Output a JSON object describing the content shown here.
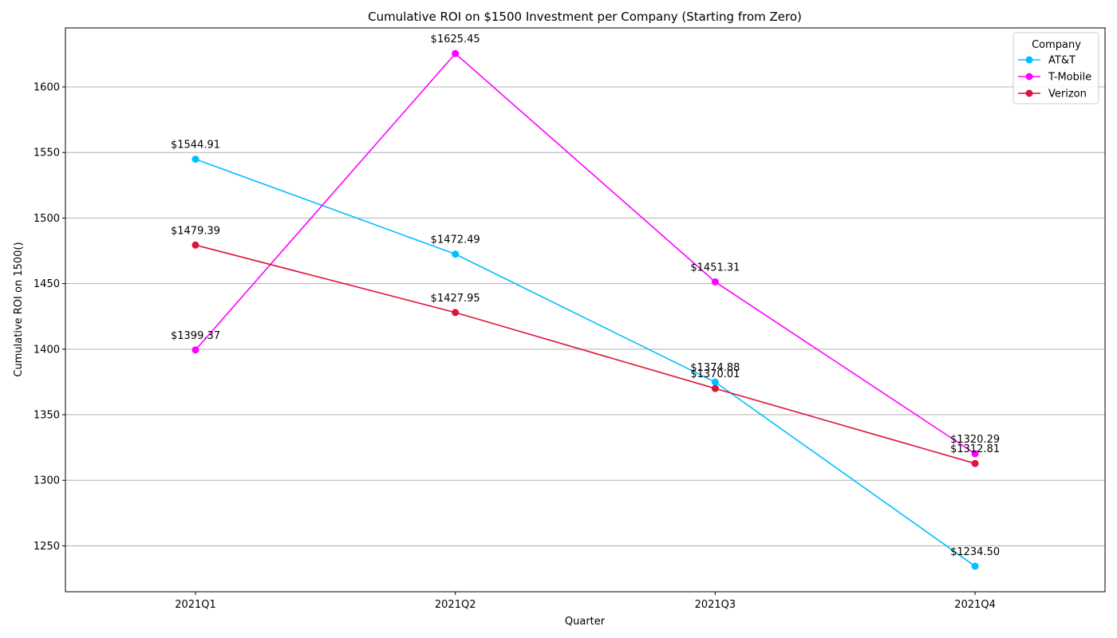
{
  "chart_data": {
    "type": "line",
    "title": "Cumulative ROI on $1500 Investment per Company (Starting from Zero)",
    "xlabel": "Quarter",
    "ylabel": "Cumulative ROI on 1500()",
    "categories": [
      "2021Q1",
      "2021Q2",
      "2021Q3",
      "2021Q4"
    ],
    "ylim": [
      1215,
      1645
    ],
    "yticks": [
      1250,
      1300,
      1350,
      1400,
      1450,
      1500,
      1550,
      1600
    ],
    "grid": "horizontal",
    "legend": {
      "title": "Company",
      "placement": "top-right"
    },
    "series": [
      {
        "name": "AT&T",
        "color": "#00bfff",
        "values": [
          1544.91,
          1472.49,
          1374.88,
          1234.5
        ],
        "labels": [
          "$1544.91",
          "$1472.49",
          "$1374.88",
          "$1234.50"
        ]
      },
      {
        "name": "T-Mobile",
        "color": "#ff00ff",
        "values": [
          1399.37,
          1625.45,
          1451.31,
          1320.29
        ],
        "labels": [
          "$1399.37",
          "$1625.45",
          "$1451.31",
          "$1320.29"
        ]
      },
      {
        "name": "Verizon",
        "color": "#dc143c",
        "values": [
          1479.39,
          1427.95,
          1370.01,
          1312.81
        ],
        "labels": [
          "$1479.39",
          "$1427.95",
          "$1370.01",
          "$1312.81"
        ]
      }
    ]
  }
}
